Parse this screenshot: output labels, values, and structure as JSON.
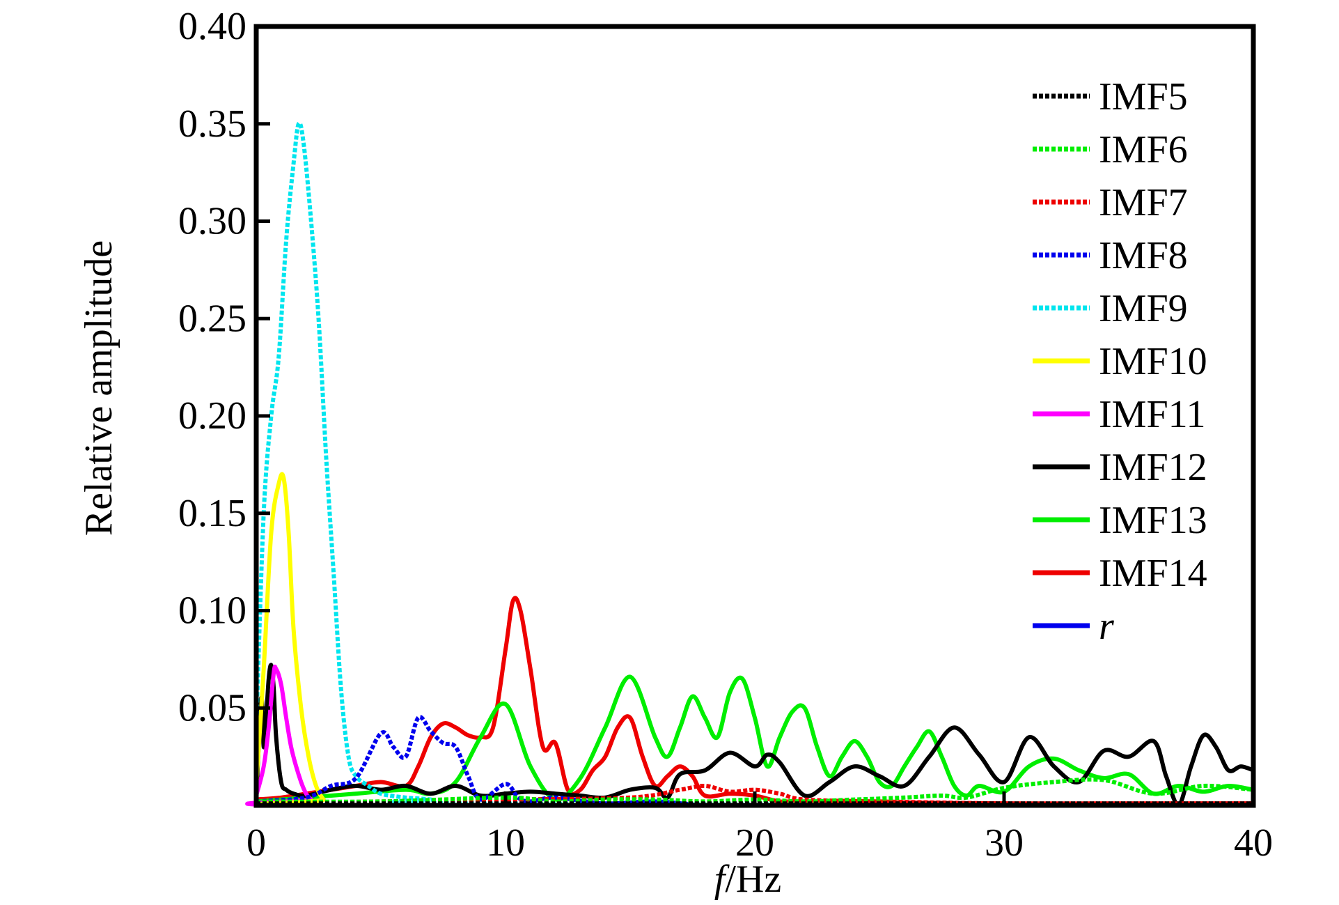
{
  "chart_data": {
    "type": "line",
    "title": "",
    "xlabel_italic": "f",
    "xlabel_rest": "/Hz",
    "ylabel": "Relative amplitude",
    "xlim": [
      0,
      40
    ],
    "ylim": [
      0,
      0.4
    ],
    "xticks": [
      0,
      10,
      20,
      30,
      40
    ],
    "xtick_labels": [
      "0",
      "10",
      "20",
      "30",
      "40"
    ],
    "yticks": [
      0.05,
      0.1,
      0.15,
      0.2,
      0.25,
      0.3,
      0.35,
      0.4
    ],
    "ytick_labels": [
      "0.05",
      "0.10",
      "0.15",
      "0.20",
      "0.25",
      "0.30",
      "0.35",
      "0.40"
    ],
    "grid": false,
    "legend_position": "top-right",
    "series": [
      {
        "name": "IMF5",
        "color": "#000000",
        "dashed": true,
        "x": [
          0,
          2,
          4,
          6,
          8,
          10,
          12,
          14,
          16,
          18,
          20,
          22,
          24,
          26,
          28,
          30,
          32,
          34,
          36,
          38,
          40
        ],
        "y": [
          0.001,
          0.001,
          0.001,
          0.001,
          0.001,
          0.001,
          0.001,
          0.001,
          0.001,
          0.001,
          0.001,
          0.001,
          0.001,
          0.001,
          0.001,
          0.001,
          0.001,
          0.001,
          0.001,
          0.001,
          0.001
        ]
      },
      {
        "name": "IMF6",
        "color": "#00ee00",
        "dashed": true,
        "x": [
          0,
          5,
          10,
          12,
          14,
          16,
          18,
          20,
          22,
          24,
          26,
          27.5,
          28.5,
          30,
          32,
          34,
          36,
          38,
          40
        ],
        "y": [
          0.002,
          0.002,
          0.004,
          0.002,
          0.003,
          0.003,
          0.002,
          0.003,
          0.002,
          0.003,
          0.004,
          0.005,
          0.004,
          0.009,
          0.012,
          0.013,
          0.006,
          0.01,
          0.008
        ]
      },
      {
        "name": "IMF7",
        "color": "#ee0000",
        "dashed": true,
        "x": [
          0,
          5,
          10,
          15,
          17,
          18,
          19,
          20,
          21,
          22,
          25,
          30,
          35,
          40
        ],
        "y": [
          0.001,
          0.002,
          0.003,
          0.004,
          0.008,
          0.01,
          0.007,
          0.008,
          0.006,
          0.003,
          0.002,
          0.001,
          0.001,
          0.001
        ]
      },
      {
        "name": "IMF8",
        "color": "#0000ee",
        "dashed": true,
        "x": [
          0,
          2,
          3,
          4,
          5,
          5.5,
          6,
          6.5,
          7,
          7.5,
          8,
          8.5,
          9,
          10,
          10.5,
          11,
          12,
          14,
          16,
          18,
          20,
          40
        ],
        "y": [
          0.002,
          0.004,
          0.01,
          0.014,
          0.037,
          0.03,
          0.025,
          0.045,
          0.038,
          0.032,
          0.03,
          0.015,
          0.003,
          0.011,
          0.004,
          0.002,
          0.004,
          0.001,
          0.002,
          0.0,
          0.0,
          0.0
        ]
      },
      {
        "name": "IMF9",
        "color": "#00e5ee",
        "dashed": true,
        "x": [
          0,
          0.3,
          0.6,
          0.9,
          1.2,
          1.5,
          1.7,
          1.9,
          2.2,
          2.5,
          2.8,
          3.1,
          3.4,
          3.7,
          4.0,
          4.5,
          5,
          6,
          7,
          8,
          40
        ],
        "y": [
          0.04,
          0.15,
          0.2,
          0.23,
          0.29,
          0.33,
          0.35,
          0.34,
          0.3,
          0.25,
          0.18,
          0.12,
          0.06,
          0.025,
          0.015,
          0.01,
          0.006,
          0.004,
          0.003,
          0.001,
          0.0
        ]
      },
      {
        "name": "IMF10",
        "color": "#ffff00",
        "dashed": false,
        "x": [
          0,
          0.3,
          0.6,
          0.9,
          1.1,
          1.3,
          1.5,
          1.8,
          2.1,
          2.4,
          2.7,
          3.0,
          40
        ],
        "y": [
          0.01,
          0.07,
          0.14,
          0.165,
          0.168,
          0.14,
          0.09,
          0.05,
          0.025,
          0.01,
          0.003,
          0.0,
          0.0
        ]
      },
      {
        "name": "IMF11",
        "color": "#ff00ff",
        "dashed": false,
        "x": [
          0,
          0.3,
          0.5,
          0.7,
          0.8,
          1.0,
          1.2,
          1.4,
          1.6,
          1.8,
          2.0,
          2.2,
          2.5,
          40
        ],
        "y": [
          0.005,
          0.02,
          0.04,
          0.068,
          0.07,
          0.062,
          0.045,
          0.03,
          0.02,
          0.012,
          0.006,
          0.003,
          0.0,
          0.0
        ]
      },
      {
        "name": "IMF12",
        "color": "#000000",
        "dashed": false,
        "x": [
          0,
          0.2,
          0.3,
          0.4,
          0.5,
          0.6,
          0.7,
          0.8,
          1.0,
          1.2,
          1.5,
          2,
          3,
          4,
          5,
          6,
          7,
          8,
          9,
          10,
          11,
          12,
          13,
          14,
          15,
          16,
          16.5,
          17,
          18,
          19,
          20,
          20.5,
          21,
          22,
          23,
          24,
          25,
          26,
          27,
          28,
          29,
          30,
          31,
          32,
          33,
          34,
          35,
          36,
          36.5,
          37,
          37.5,
          38,
          38.5,
          39,
          39.5,
          40
        ],
        "y": [
          0.002,
          0.055,
          0.03,
          0.045,
          0.065,
          0.072,
          0.06,
          0.035,
          0.012,
          0.008,
          0.006,
          0.005,
          0.008,
          0.01,
          0.008,
          0.01,
          0.006,
          0.01,
          0.005,
          0.006,
          0.007,
          0.006,
          0.005,
          0.004,
          0.008,
          0.009,
          0.004,
          0.016,
          0.018,
          0.027,
          0.02,
          0.026,
          0.022,
          0.005,
          0.012,
          0.02,
          0.015,
          0.01,
          0.025,
          0.04,
          0.026,
          0.012,
          0.035,
          0.02,
          0.012,
          0.028,
          0.025,
          0.033,
          0.015,
          0.0,
          0.02,
          0.036,
          0.03,
          0.018,
          0.02,
          0.018
        ]
      },
      {
        "name": "IMF13",
        "color": "#00ee00",
        "dashed": false,
        "x": [
          0,
          2,
          4,
          6,
          7,
          8,
          9,
          10,
          11,
          12,
          13,
          14,
          15,
          16,
          16.5,
          17,
          17.5,
          18,
          18.5,
          19,
          19.5,
          20,
          20.5,
          21,
          21.5,
          22,
          22.5,
          23,
          23.5,
          24,
          24.5,
          25,
          25.5,
          26,
          26.5,
          27,
          27.5,
          28,
          28.5,
          29,
          30,
          31,
          32,
          33,
          34,
          35,
          36,
          37,
          38,
          39,
          40
        ],
        "y": [
          0.002,
          0.004,
          0.006,
          0.008,
          0.006,
          0.012,
          0.035,
          0.052,
          0.02,
          0.003,
          0.014,
          0.04,
          0.066,
          0.035,
          0.025,
          0.04,
          0.056,
          0.045,
          0.035,
          0.058,
          0.065,
          0.045,
          0.02,
          0.035,
          0.048,
          0.05,
          0.03,
          0.015,
          0.025,
          0.033,
          0.025,
          0.012,
          0.01,
          0.02,
          0.03,
          0.038,
          0.025,
          0.01,
          0.005,
          0.01,
          0.007,
          0.02,
          0.024,
          0.018,
          0.014,
          0.016,
          0.006,
          0.01,
          0.007,
          0.01,
          0.008
        ]
      },
      {
        "name": "IMF14",
        "color": "#ee0000",
        "dashed": false,
        "x": [
          0,
          1,
          2,
          3,
          4,
          5,
          6,
          6.5,
          7,
          7.5,
          8,
          8.5,
          9,
          9.5,
          10,
          10.3,
          10.6,
          11,
          11.5,
          12,
          12.5,
          13,
          13.5,
          14,
          14.5,
          15,
          15.5,
          16,
          16.5,
          17,
          17.5,
          18,
          19,
          20,
          21,
          22,
          30,
          40
        ],
        "y": [
          0.003,
          0.004,
          0.006,
          0.008,
          0.01,
          0.012,
          0.01,
          0.02,
          0.035,
          0.042,
          0.04,
          0.036,
          0.035,
          0.04,
          0.08,
          0.105,
          0.1,
          0.07,
          0.03,
          0.032,
          0.008,
          0.008,
          0.018,
          0.025,
          0.04,
          0.045,
          0.025,
          0.01,
          0.015,
          0.02,
          0.015,
          0.005,
          0.006,
          0.005,
          0.002,
          0.002,
          0.001,
          0.001
        ]
      },
      {
        "name": "r",
        "color": "#0000ee",
        "dashed": false,
        "x": [
          0,
          5,
          10,
          15,
          20,
          25,
          30,
          35,
          40
        ],
        "y": [
          0.0,
          0.0,
          0.0,
          0.0,
          0.0,
          0.0,
          0.0,
          0.0,
          0.0
        ]
      }
    ]
  }
}
